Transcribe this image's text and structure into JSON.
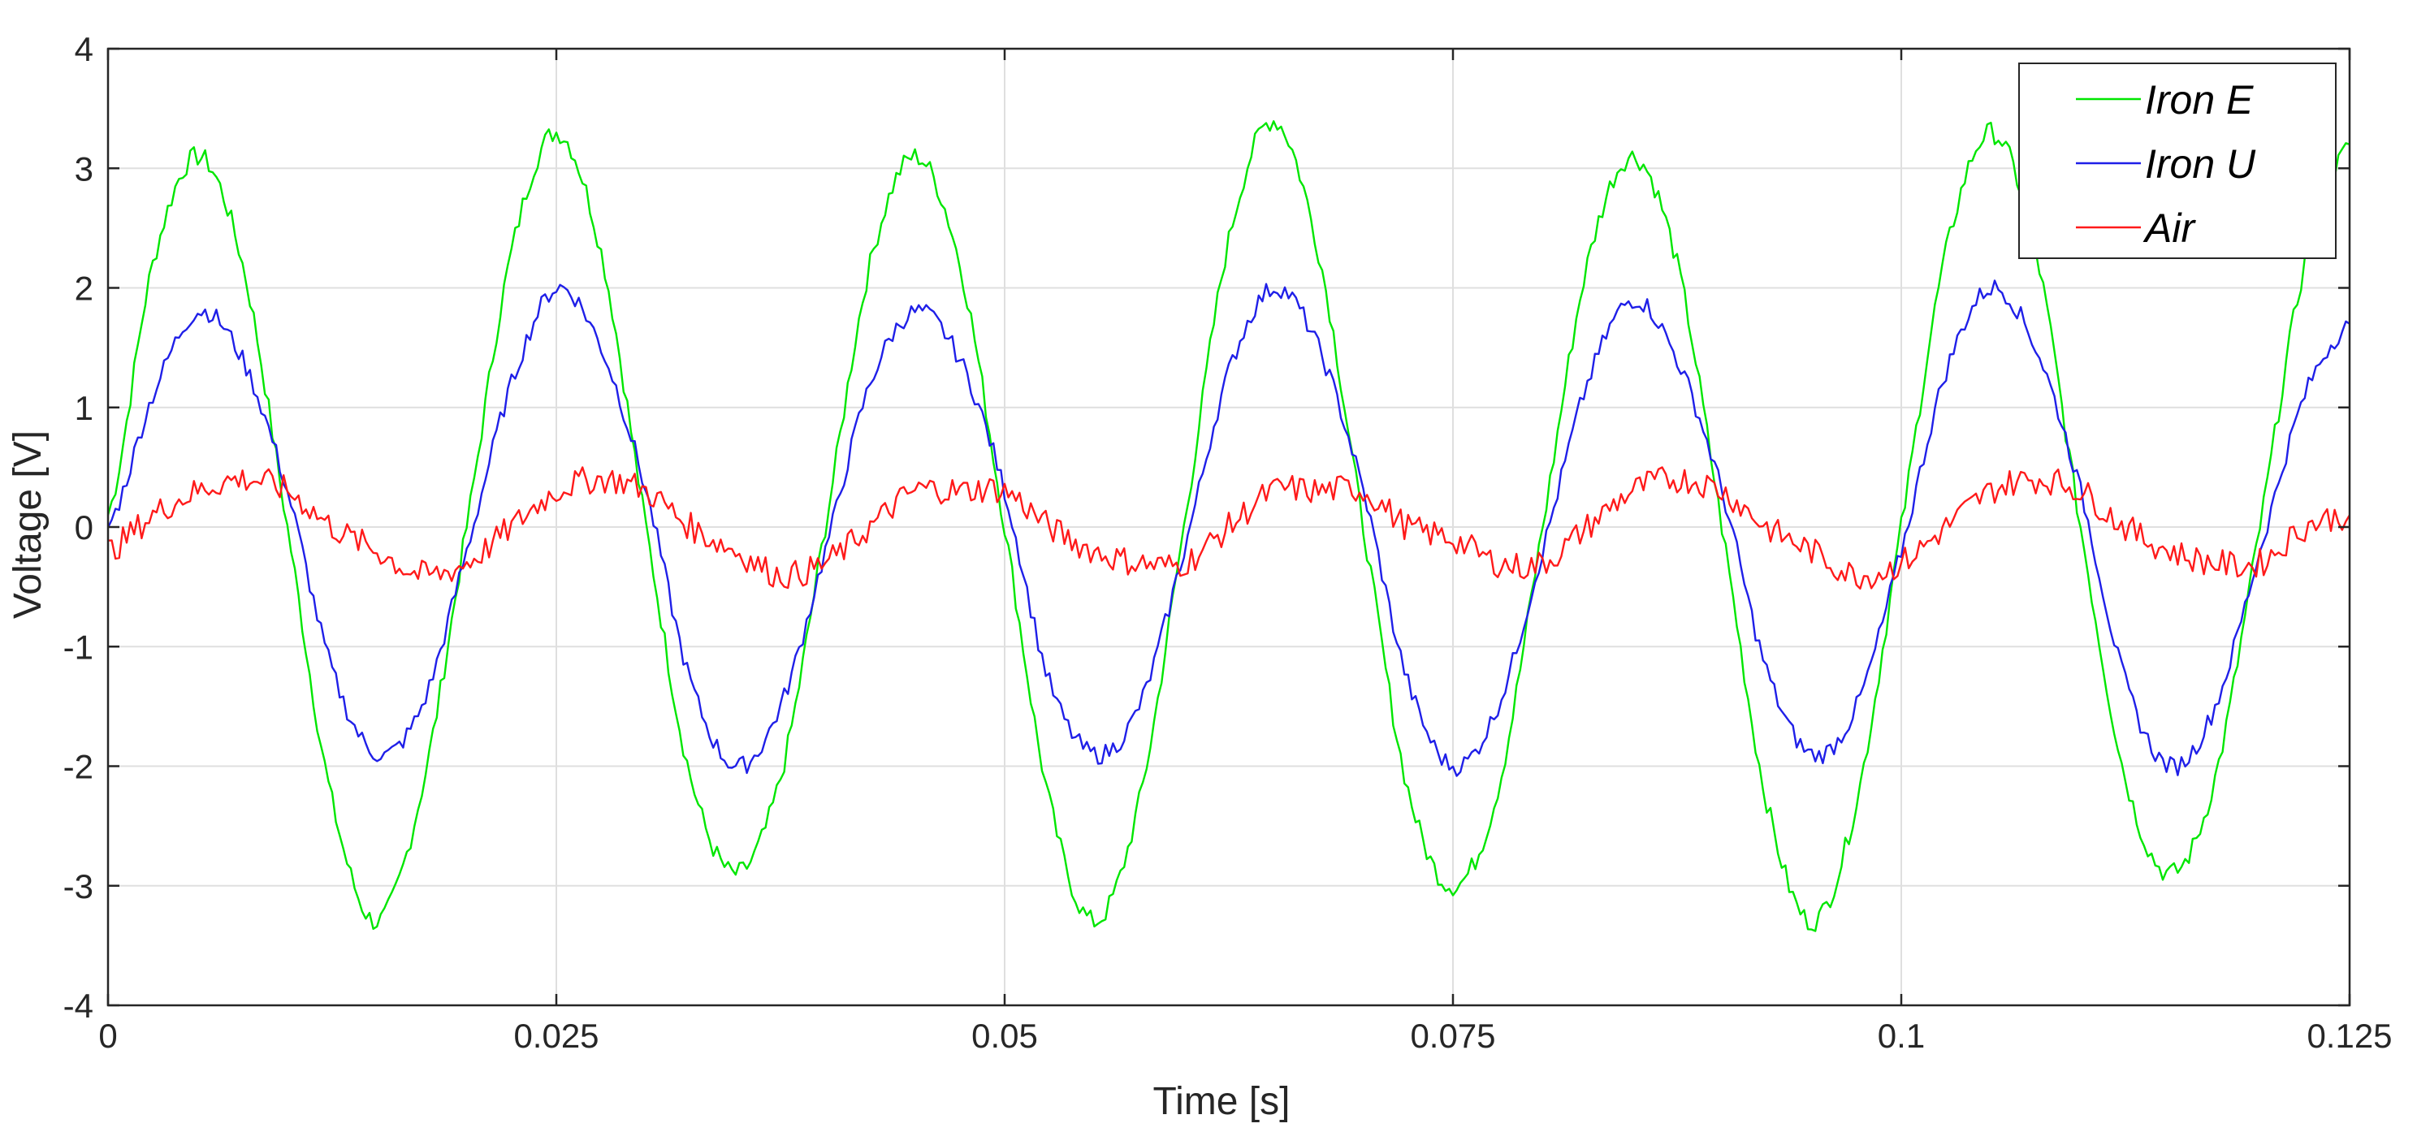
{
  "chart_data": {
    "type": "line",
    "title": "",
    "xlabel": "Time [s]",
    "ylabel": "Voltage [V]",
    "xlim": [
      0,
      0.125
    ],
    "ylim": [
      -4,
      4
    ],
    "grid": true,
    "legend_position": "top-right",
    "x_ticks": [
      0,
      0.025,
      0.05,
      0.075,
      0.1,
      0.125
    ],
    "x_tick_labels": [
      "0",
      "0.025",
      "0.05",
      "0.075",
      "0.1",
      "0.125"
    ],
    "y_ticks": [
      -4,
      -3,
      -2,
      -1,
      0,
      1,
      2,
      3,
      4
    ],
    "y_tick_labels": [
      "-4",
      "-3",
      "-2",
      "-1",
      "0",
      "1",
      "2",
      "3",
      "4"
    ],
    "x": [
      0,
      0.0025,
      0.005,
      0.0075,
      0.01,
      0.0125,
      0.015,
      0.0175,
      0.02,
      0.0225,
      0.025,
      0.0275,
      0.03,
      0.0325,
      0.035,
      0.0375,
      0.04,
      0.0425,
      0.045,
      0.0475,
      0.05,
      0.0525,
      0.055,
      0.0575,
      0.06,
      0.0625,
      0.065,
      0.0675,
      0.07,
      0.0725,
      0.075,
      0.0775,
      0.08,
      0.0825,
      0.085,
      0.0875,
      0.09,
      0.0925,
      0.095,
      0.0975,
      0.1,
      0.1025,
      0.105,
      0.1075,
      0.11,
      0.1125,
      0.115,
      0.1175,
      0.12,
      0.1225,
      0.125
    ],
    "series": [
      {
        "name": "Iron E",
        "color": "#00e600",
        "values": [
          0.1,
          2.2,
          3.1,
          2.2,
          0.0,
          -2.3,
          -3.3,
          -2.2,
          0.0,
          2.3,
          3.3,
          2.3,
          0.0,
          -2.1,
          -2.9,
          -2.1,
          0.0,
          2.2,
          3.1,
          2.2,
          0.0,
          -2.3,
          -3.3,
          -2.3,
          0.0,
          2.4,
          3.4,
          2.3,
          0.0,
          -2.2,
          -3.0,
          -2.2,
          0.0,
          2.2,
          3.1,
          2.2,
          0.0,
          -2.3,
          -3.3,
          -2.3,
          0.0,
          2.3,
          3.3,
          2.3,
          0.0,
          -2.1,
          -2.9,
          -2.1,
          0.0,
          2.2,
          3.2
        ]
      },
      {
        "name": "Iron U",
        "color": "#1f1fe8",
        "values": [
          0.0,
          1.1,
          1.8,
          1.4,
          0.3,
          -1.2,
          -1.9,
          -1.5,
          -0.2,
          1.2,
          2.0,
          1.5,
          0.3,
          -1.3,
          -2.0,
          -1.5,
          -0.2,
          1.2,
          1.8,
          1.4,
          0.3,
          -1.3,
          -1.9,
          -1.5,
          -0.2,
          1.3,
          2.0,
          1.5,
          0.3,
          -1.3,
          -2.0,
          -1.5,
          -0.2,
          1.2,
          1.9,
          1.4,
          0.3,
          -1.2,
          -1.9,
          -1.5,
          -0.2,
          1.3,
          2.0,
          1.5,
          0.3,
          -1.3,
          -2.0,
          -1.5,
          -0.2,
          1.1,
          1.7
        ]
      },
      {
        "name": "Air",
        "color": "#ff1a1a",
        "values": [
          -0.2,
          0.1,
          0.3,
          0.4,
          0.3,
          0.0,
          -0.2,
          -0.4,
          -0.3,
          0.0,
          0.3,
          0.4,
          0.3,
          0.0,
          -0.2,
          -0.4,
          -0.3,
          0.0,
          0.3,
          0.3,
          0.3,
          0.0,
          -0.2,
          -0.3,
          -0.3,
          0.0,
          0.3,
          0.3,
          0.3,
          0.0,
          -0.1,
          -0.3,
          -0.3,
          0.0,
          0.3,
          0.4,
          0.3,
          0.0,
          -0.2,
          -0.4,
          -0.3,
          0.0,
          0.3,
          0.4,
          0.3,
          0.0,
          -0.2,
          -0.3,
          -0.3,
          0.0,
          0.1
        ]
      }
    ]
  }
}
